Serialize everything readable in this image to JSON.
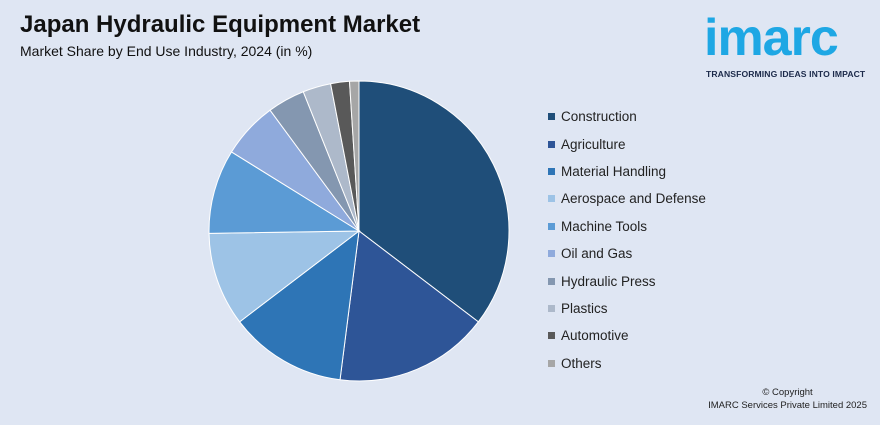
{
  "header": {
    "title": "Japan Hydraulic Equipment Market",
    "subtitle": "Market Share by End Use Industry, 2024 (in %)"
  },
  "logo": {
    "word": "imarc",
    "tagline": "TRANSFORMING IDEAS INTO IMPACT",
    "color": "#1ea7e4"
  },
  "copyright": {
    "line1": "© Copyright",
    "line2": "IMARC Services Private Limited 2025"
  },
  "chart_data": {
    "type": "pie",
    "title": "Japan Hydraulic Equipment Market",
    "subtitle": "Market Share by End Use Industry, 2024 (in %)",
    "legend_position": "right",
    "categories": [
      "Construction",
      "Agriculture",
      "Material Handling",
      "Aerospace and Defense",
      "Machine Tools",
      "Oil and Gas",
      "Hydraulic Press",
      "Plastics",
      "Automotive",
      "Others"
    ],
    "values": [
      35,
      16.5,
      12.5,
      10,
      9,
      6,
      4,
      3,
      2,
      1
    ],
    "colors": [
      "#1f4e79",
      "#2e5597",
      "#2e75b6",
      "#9dc3e6",
      "#5b9bd5",
      "#8faadc",
      "#8497b0",
      "#adb9ca",
      "#595959",
      "#a6a6a6"
    ]
  }
}
